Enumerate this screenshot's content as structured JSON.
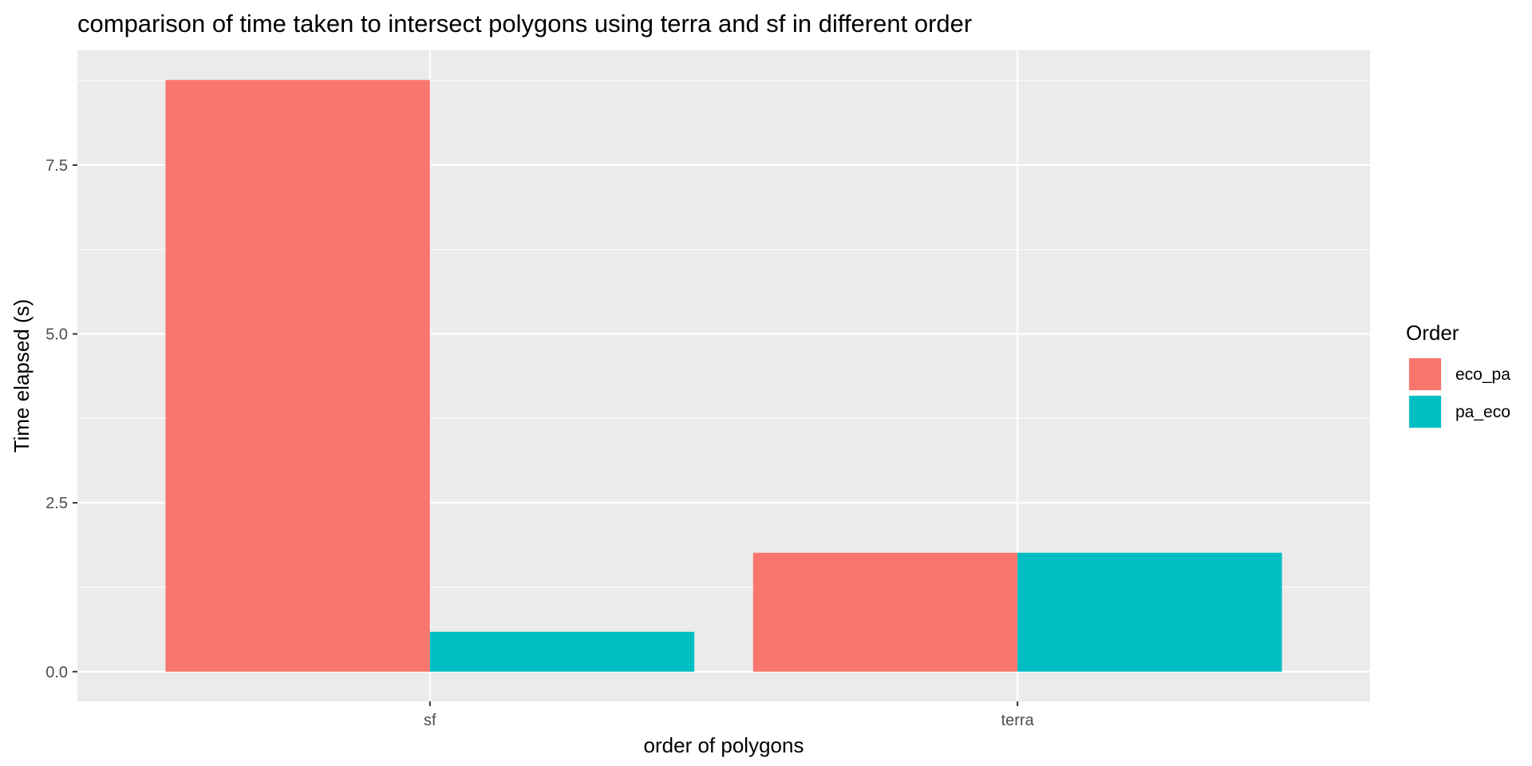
{
  "chart_data": {
    "type": "bar",
    "title": "comparison of time taken to intersect polygons using terra and sf in different order",
    "xlabel": "order of polygons",
    "ylabel": "Time elapsed (s)",
    "categories": [
      "sf",
      "terra"
    ],
    "series": [
      {
        "name": "eco_pa",
        "color": "#F8766D",
        "values": [
          8.76,
          1.76
        ]
      },
      {
        "name": "pa_eco",
        "color": "#00BFC4",
        "values": [
          0.59,
          1.76
        ]
      }
    ],
    "yticks": [
      0.0,
      2.5,
      5.0,
      7.5
    ],
    "ytick_labels": [
      "0.0",
      "2.5",
      "5.0",
      "7.5"
    ],
    "ylim": [
      -0.44,
      9.2
    ],
    "grid": true,
    "legend": {
      "title": "Order",
      "position": "right"
    },
    "panel_background": "#EBEBEB"
  }
}
